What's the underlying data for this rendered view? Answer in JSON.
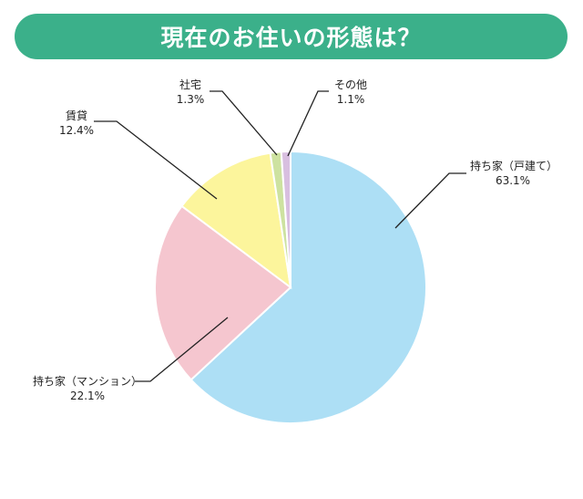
{
  "title": "現在のお住いの形態は？",
  "chart_data": {
    "type": "pie",
    "title": "現在のお住いの形態は？",
    "slices": [
      {
        "label": "持ち家（戸建て）",
        "value": 63.1,
        "value_label": "63.1%",
        "color": "#addff5"
      },
      {
        "label": "持ち家（マンション）",
        "value": 22.1,
        "value_label": "22.1%",
        "color": "#f5c6cf"
      },
      {
        "label": "賃貸",
        "value": 12.4,
        "value_label": "12.4%",
        "color": "#fcf59c"
      },
      {
        "label": "社宅",
        "value": 1.3,
        "value_label": "1.3%",
        "color": "#cde2a0"
      },
      {
        "label": "その他",
        "value": 1.1,
        "value_label": "1.1%",
        "color": "#d8bfe0"
      }
    ],
    "start": "12 o'clock",
    "direction": "clockwise"
  }
}
